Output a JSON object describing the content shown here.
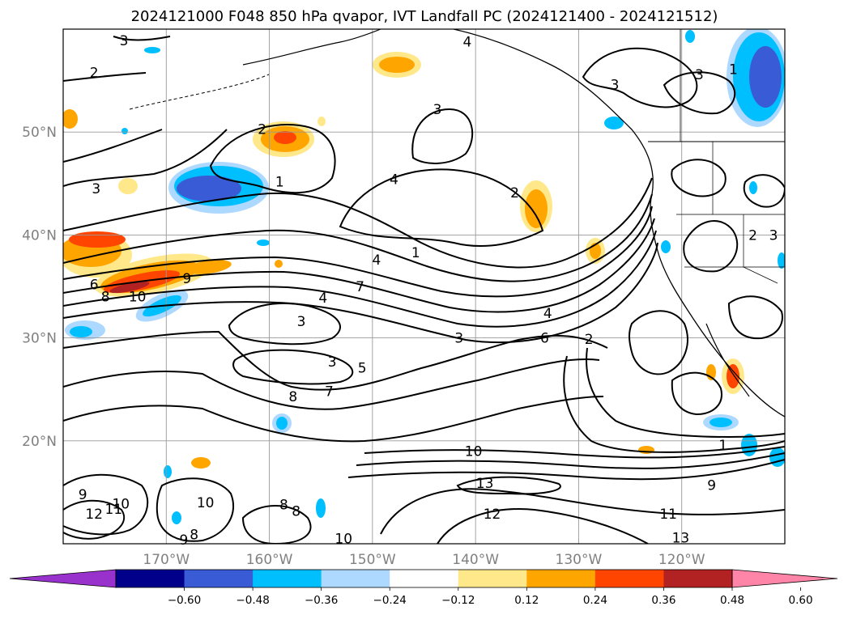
{
  "title": "2024121000 F048 850 hPa qvapor, IVT Landfall PC (2024121400 - 2024121512)",
  "map": {
    "lat_ticks": [
      "50°N",
      "40°N",
      "30°N",
      "20°N"
    ],
    "lon_ticks": [
      "170°W",
      "160°W",
      "150°W",
      "140°W",
      "130°W",
      "120°W"
    ],
    "lat_values": [
      50,
      40,
      30,
      20
    ],
    "lon_values": [
      -170,
      -160,
      -150,
      -140,
      -130,
      -120
    ],
    "extent": {
      "lon_min": -180,
      "lon_max": -110,
      "lat_min": 10,
      "lat_max": 60
    },
    "gridlines": true
  },
  "colorbar": {
    "tick_labels": [
      "−0.60",
      "−0.48",
      "−0.36",
      "−0.24",
      "−0.12",
      "0.12",
      "0.24",
      "0.36",
      "0.48",
      "0.60"
    ],
    "bin_colors": [
      "#9932cc",
      "#00008b",
      "#3a5bd6",
      "#00bfff",
      "#add8ff",
      "#ffffff",
      "#ffe88a",
      "#ffa500",
      "#ff4500",
      "#b22222",
      "#ff85a8"
    ],
    "extend": "both"
  },
  "contour_labels": [
    {
      "text": "3",
      "lon": -174.1,
      "lat": 58.9
    },
    {
      "text": "2",
      "lon": -177.0,
      "lat": 55.8
    },
    {
      "text": "2",
      "lon": -160.7,
      "lat": 50.3
    },
    {
      "text": "3",
      "lon": -176.8,
      "lat": 44.5
    },
    {
      "text": "1",
      "lon": -159.0,
      "lat": 45.2
    },
    {
      "text": "4",
      "lon": -147.9,
      "lat": 45.4
    },
    {
      "text": "3",
      "lon": -143.7,
      "lat": 52.2
    },
    {
      "text": "2",
      "lon": -136.2,
      "lat": 44.1
    },
    {
      "text": "1",
      "lon": -145.8,
      "lat": 38.3
    },
    {
      "text": "4",
      "lon": -149.6,
      "lat": 37.6
    },
    {
      "text": "7",
      "lon": -151.2,
      "lat": 35.0
    },
    {
      "text": "4",
      "lon": -154.8,
      "lat": 33.9
    },
    {
      "text": "6",
      "lon": -177.0,
      "lat": 35.2
    },
    {
      "text": "8",
      "lon": -175.9,
      "lat": 34.0
    },
    {
      "text": "9",
      "lon": -168.0,
      "lat": 35.8
    },
    {
      "text": "10",
      "lon": -172.8,
      "lat": 34.0
    },
    {
      "text": "3",
      "lon": -156.9,
      "lat": 31.6
    },
    {
      "text": "3",
      "lon": -141.6,
      "lat": 30.0
    },
    {
      "text": "4",
      "lon": -133.0,
      "lat": 32.4
    },
    {
      "text": "6",
      "lon": -133.3,
      "lat": 30.0
    },
    {
      "text": "2",
      "lon": -129.0,
      "lat": 29.9
    },
    {
      "text": "3",
      "lon": -153.9,
      "lat": 27.7
    },
    {
      "text": "5",
      "lon": -151.0,
      "lat": 27.1
    },
    {
      "text": "7",
      "lon": -154.2,
      "lat": 24.8
    },
    {
      "text": "8",
      "lon": -157.7,
      "lat": 24.3
    },
    {
      "text": "10",
      "lon": -140.2,
      "lat": 19.0
    },
    {
      "text": "13",
      "lon": -139.1,
      "lat": 15.9
    },
    {
      "text": "12",
      "lon": -138.4,
      "lat": 12.9
    },
    {
      "text": "1",
      "lon": -116.0,
      "lat": 19.6
    },
    {
      "text": "9",
      "lon": -117.1,
      "lat": 15.7
    },
    {
      "text": "11",
      "lon": -121.3,
      "lat": 12.9
    },
    {
      "text": "13",
      "lon": -120.1,
      "lat": 10.6
    },
    {
      "text": "9",
      "lon": -178.1,
      "lat": 14.8
    },
    {
      "text": "12",
      "lon": -177.0,
      "lat": 12.9
    },
    {
      "text": "11",
      "lon": -175.1,
      "lat": 13.4
    },
    {
      "text": "10",
      "lon": -174.4,
      "lat": 13.9
    },
    {
      "text": "10",
      "lon": -166.2,
      "lat": 14.0
    },
    {
      "text": "9",
      "lon": -168.3,
      "lat": 10.4
    },
    {
      "text": "8",
      "lon": -167.3,
      "lat": 10.9
    },
    {
      "text": "8",
      "lon": -158.6,
      "lat": 13.8
    },
    {
      "text": "8",
      "lon": -157.4,
      "lat": 13.2
    },
    {
      "text": "10",
      "lon": -152.8,
      "lat": 10.5
    },
    {
      "text": "2",
      "lon": -113.1,
      "lat": 40.0
    },
    {
      "text": "3",
      "lon": -111.1,
      "lat": 40.0
    },
    {
      "text": "1",
      "lon": -115.0,
      "lat": 56.1
    },
    {
      "text": "3",
      "lon": -126.5,
      "lat": 54.6
    },
    {
      "text": "3",
      "lon": -118.3,
      "lat": 55.6
    },
    {
      "text": "4",
      "lon": -140.8,
      "lat": 58.8
    }
  ]
}
